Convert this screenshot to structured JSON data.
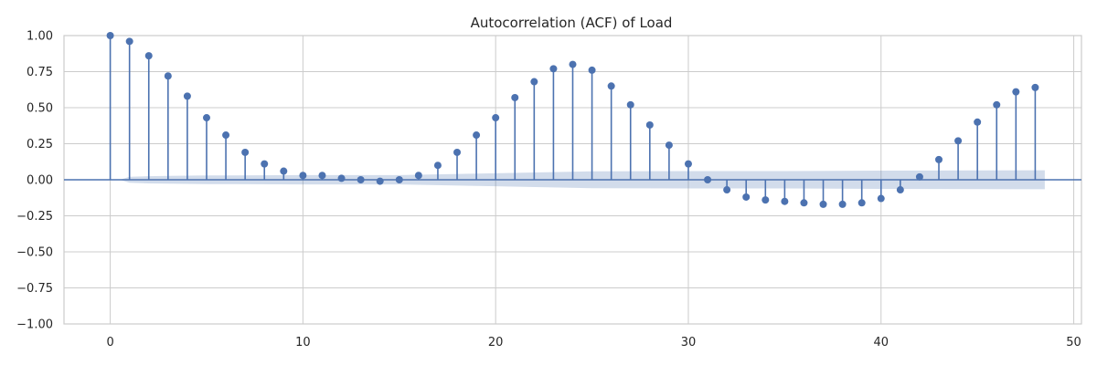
{
  "chart_data": {
    "type": "stem",
    "title": "Autocorrelation (ACF) of Load",
    "xlabel": "",
    "ylabel": "",
    "xlim": [
      -2.4,
      50.4
    ],
    "ylim": [
      -1.0,
      1.0
    ],
    "x_ticks": [
      0,
      10,
      20,
      30,
      40,
      50
    ],
    "y_ticks": [
      -1.0,
      -0.75,
      -0.5,
      -0.25,
      0.0,
      0.25,
      0.5,
      0.75,
      1.0
    ],
    "x_tick_labels": [
      "0",
      "10",
      "20",
      "30",
      "40",
      "50"
    ],
    "y_tick_labels": [
      "−1.00",
      "−0.75",
      "−0.50",
      "−0.25",
      "0.00",
      "0.25",
      "0.50",
      "0.75",
      "1.00"
    ],
    "grid": true,
    "colors": {
      "stem": "#4c72b0",
      "band": "#4c72b0",
      "grid": "#cccccc",
      "axis": "#cccccc"
    },
    "lags": [
      0,
      1,
      2,
      3,
      4,
      5,
      6,
      7,
      8,
      9,
      10,
      11,
      12,
      13,
      14,
      15,
      16,
      17,
      18,
      19,
      20,
      21,
      22,
      23,
      24,
      25,
      26,
      27,
      28,
      29,
      30,
      31,
      32,
      33,
      34,
      35,
      36,
      37,
      38,
      39,
      40,
      41,
      42,
      43,
      44,
      45,
      46,
      47,
      48
    ],
    "acf": [
      1.0,
      0.96,
      0.86,
      0.72,
      0.58,
      0.43,
      0.31,
      0.19,
      0.11,
      0.06,
      0.03,
      0.03,
      0.01,
      0.0,
      -0.01,
      0.0,
      0.03,
      0.1,
      0.19,
      0.31,
      0.43,
      0.57,
      0.68,
      0.77,
      0.8,
      0.76,
      0.65,
      0.52,
      0.38,
      0.24,
      0.11,
      0.0,
      -0.07,
      -0.12,
      -0.14,
      -0.15,
      -0.16,
      -0.17,
      -0.17,
      -0.16,
      -0.13,
      -0.07,
      0.02,
      0.14,
      0.27,
      0.4,
      0.52,
      0.61,
      0.64
    ],
    "confidence_band": {
      "lags": [
        0.5,
        1,
        2,
        3,
        5,
        10,
        15,
        20,
        25,
        30,
        35,
        40,
        45,
        48.5
      ],
      "upper": [
        0.0,
        0.02,
        0.025,
        0.027,
        0.03,
        0.032,
        0.032,
        0.045,
        0.058,
        0.06,
        0.06,
        0.063,
        0.065,
        0.066
      ],
      "lower": [
        0.0,
        -0.02,
        -0.025,
        -0.027,
        -0.03,
        -0.032,
        -0.032,
        -0.045,
        -0.058,
        -0.06,
        -0.06,
        -0.063,
        -0.065,
        -0.066
      ]
    }
  }
}
